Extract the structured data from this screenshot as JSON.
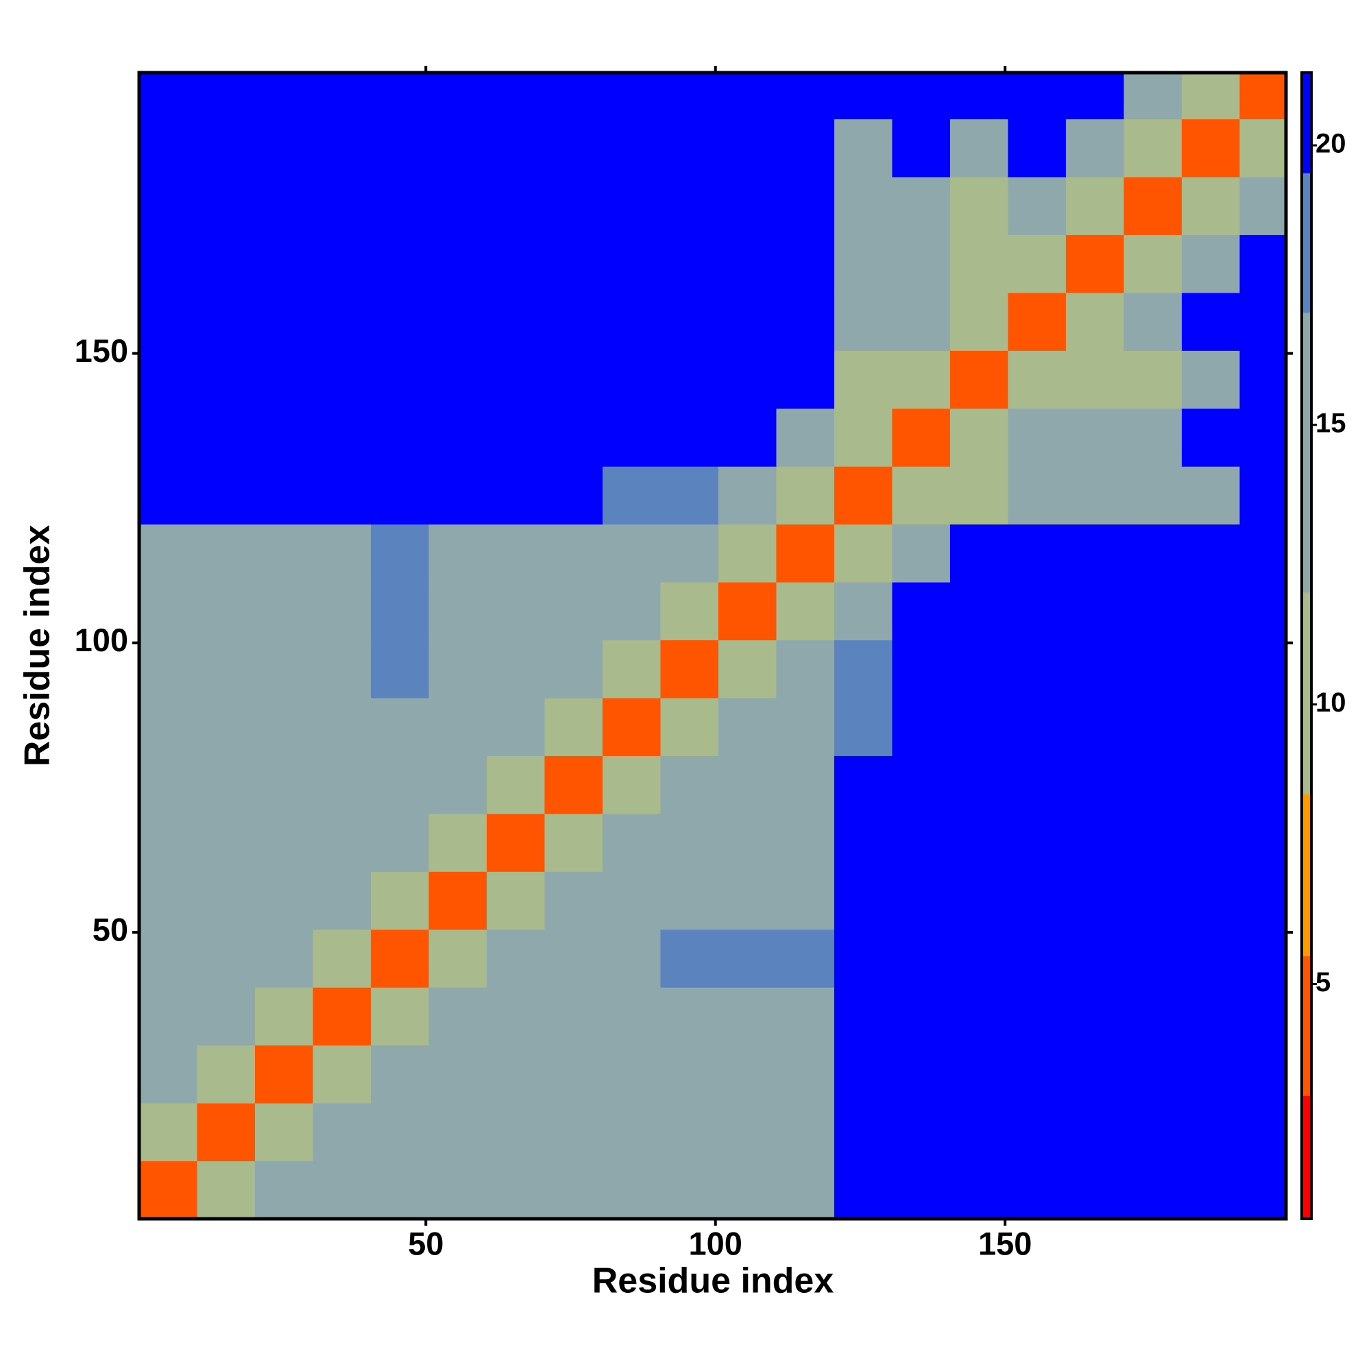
{
  "chart_data": {
    "type": "heatmap",
    "x_label": "Residue index",
    "y_label": "Residue index",
    "x_bins": [
      0.5,
      10.5,
      20.5,
      30.5,
      40.5,
      50.5,
      60.5,
      70.5,
      80.5,
      90.5,
      100.5,
      110.5,
      120.5,
      130.5,
      140.5,
      150.5,
      160.5,
      170.5,
      180.5,
      190.5,
      198.5
    ],
    "y_bins": [
      0.5,
      10.5,
      20.5,
      30.5,
      40.5,
      50.5,
      60.5,
      70.5,
      80.5,
      90.5,
      100.5,
      110.5,
      120.5,
      130.5,
      140.5,
      150.5,
      160.5,
      170.5,
      180.5,
      190.5,
      198.5
    ],
    "xlim": [
      0.5,
      198.5
    ],
    "ylim": [
      0.5,
      198.5
    ],
    "xticks": [
      50,
      100,
      150
    ],
    "yticks": [
      50,
      100,
      150
    ],
    "values": [
      [
        5,
        11,
        13,
        13,
        13,
        13,
        13,
        13,
        13,
        13,
        13,
        17,
        21,
        21,
        21,
        21,
        21,
        21,
        21,
        21
      ],
      [
        11,
        5,
        11,
        13,
        13,
        13,
        13,
        13,
        13,
        13,
        13,
        17,
        21,
        21,
        21,
        21,
        21,
        21,
        21,
        21
      ],
      [
        13,
        11,
        5,
        11,
        13,
        13,
        13,
        13,
        13,
        13,
        13,
        13,
        21,
        21,
        21,
        21,
        21,
        21,
        21,
        21
      ],
      [
        13,
        13,
        11,
        5,
        11,
        13,
        13,
        13,
        13,
        13,
        13,
        13,
        21,
        21,
        21,
        21,
        21,
        21,
        21,
        21
      ],
      [
        13,
        13,
        13,
        11,
        5,
        11,
        13,
        15,
        17,
        19,
        19,
        19,
        21,
        21,
        21,
        21,
        21,
        21,
        21,
        21
      ],
      [
        13,
        13,
        13,
        13,
        11,
        5,
        11,
        15,
        17,
        17,
        17,
        17,
        21,
        21,
        21,
        21,
        21,
        21,
        21,
        21
      ],
      [
        13,
        13,
        13,
        13,
        13,
        11,
        5,
        11,
        13,
        13,
        13,
        13,
        21,
        21,
        21,
        21,
        21,
        21,
        21,
        21
      ],
      [
        13,
        13,
        13,
        13,
        15,
        15,
        11,
        5,
        11,
        13,
        13,
        13,
        21,
        21,
        21,
        21,
        21,
        21,
        21,
        21
      ],
      [
        13,
        13,
        13,
        13,
        17,
        17,
        13,
        11,
        5,
        11,
        13,
        15,
        19,
        21,
        21,
        21,
        21,
        21,
        21,
        21
      ],
      [
        13,
        13,
        13,
        13,
        19,
        17,
        13,
        13,
        11,
        5,
        11,
        13,
        19,
        21,
        21,
        21,
        21,
        21,
        21,
        21
      ],
      [
        13,
        13,
        13,
        13,
        19,
        17,
        13,
        13,
        13,
        11,
        5,
        11,
        17,
        21,
        21,
        21,
        21,
        21,
        21,
        21
      ],
      [
        17,
        17,
        13,
        13,
        19,
        17,
        13,
        13,
        15,
        13,
        11,
        5,
        11,
        17,
        21,
        21,
        21,
        21,
        21,
        21
      ],
      [
        21,
        21,
        21,
        21,
        21,
        21,
        21,
        21,
        19,
        19,
        17,
        11,
        5,
        11,
        9,
        13,
        13,
        15,
        17,
        21
      ],
      [
        21,
        21,
        21,
        21,
        21,
        21,
        21,
        21,
        21,
        21,
        21,
        17,
        11,
        5,
        11,
        15,
        15,
        15,
        21,
        21
      ],
      [
        21,
        21,
        21,
        21,
        21,
        21,
        21,
        21,
        21,
        21,
        21,
        21,
        9,
        11,
        5,
        11,
        10,
        11,
        15,
        21
      ],
      [
        21,
        21,
        21,
        21,
        21,
        21,
        21,
        21,
        21,
        21,
        21,
        21,
        13,
        15,
        11,
        5,
        11,
        15,
        21,
        21
      ],
      [
        21,
        21,
        21,
        21,
        21,
        21,
        21,
        21,
        21,
        21,
        21,
        21,
        13,
        15,
        10,
        11,
        5,
        11,
        17,
        21
      ],
      [
        21,
        21,
        21,
        21,
        21,
        21,
        21,
        21,
        21,
        21,
        21,
        21,
        15,
        15,
        11,
        15,
        11,
        5,
        11,
        15
      ],
      [
        21,
        21,
        21,
        21,
        21,
        21,
        21,
        21,
        21,
        21,
        21,
        21,
        17,
        21,
        15,
        21,
        17,
        11,
        5,
        11
      ],
      [
        21,
        21,
        21,
        21,
        21,
        21,
        21,
        21,
        21,
        21,
        21,
        21,
        21,
        21,
        21,
        21,
        21,
        15,
        11,
        5
      ]
    ],
    "colorbar_lim": [
      0.8,
      21.3
    ],
    "colorbar_ticks": [
      5,
      10,
      15,
      20
    ],
    "color_breaks": [
      0.8,
      3,
      5.5,
      8.4,
      12,
      17,
      19.5,
      21.3
    ],
    "colors": [
      "#ff0000",
      "#ff5500",
      "#ff9900",
      "#a9ba8c",
      "#8fa8ac",
      "#5b84bf",
      "#0000ff"
    ]
  }
}
